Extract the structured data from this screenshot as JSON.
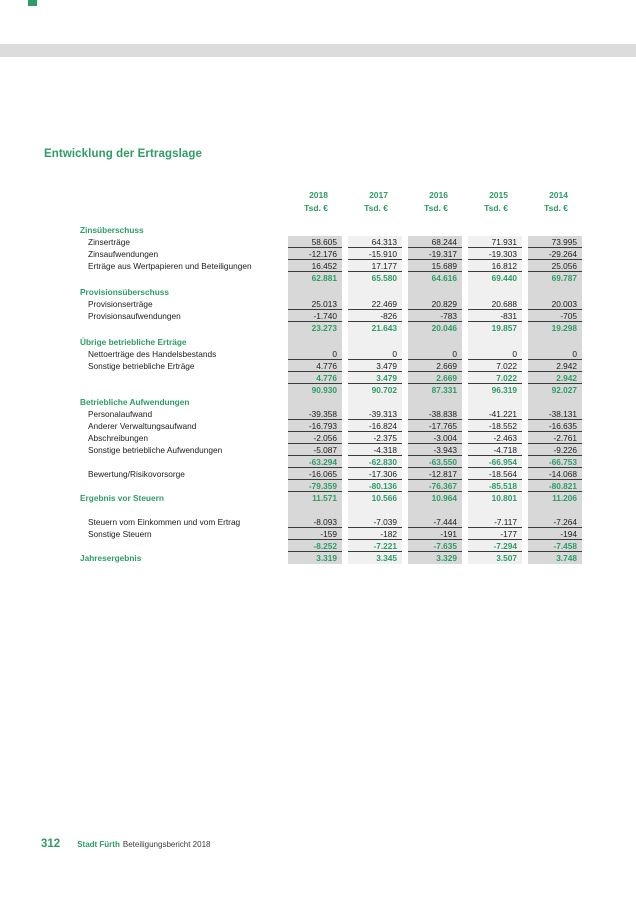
{
  "page": {
    "title": "Entwicklung der Ertragslage",
    "footer": {
      "page_number": "312",
      "brand": "Stadt Fürth",
      "report": "Beteiligungsbericht 2018"
    }
  },
  "colors": {
    "accent_green": "#2e9c66",
    "band_dark": "#d8d8d8",
    "band_light": "#f0f0f0",
    "top_band_gray": "#dcdcdc"
  },
  "table": {
    "years": [
      "2018",
      "2017",
      "2016",
      "2015",
      "2014"
    ],
    "unit": "Tsd. €",
    "rows": [
      {
        "type": "section",
        "label": "Zinsüberschuss",
        "band": false
      },
      {
        "type": "data",
        "label": "Zinserträge",
        "values": [
          "58.605",
          "64.313",
          "68.244",
          "71.931",
          "73.995"
        ],
        "underline": true
      },
      {
        "type": "data",
        "label": "Zinsaufwendungen",
        "values": [
          "-12.176",
          "-15.910",
          "-19.317",
          "-19.303",
          "-29.264"
        ],
        "underline": true
      },
      {
        "type": "data",
        "label": "Erträge aus Wertpapieren und Beteiligungen",
        "values": [
          "16.452",
          "17.177",
          "15.689",
          "16.812",
          "25.056"
        ],
        "underline": true
      },
      {
        "type": "sum",
        "label": "",
        "values": [
          "62.881",
          "65.580",
          "64.616",
          "69.440",
          "69.787"
        ],
        "underline": false
      },
      {
        "type": "spacer_small"
      },
      {
        "type": "section",
        "label": "Provisionsüberschuss"
      },
      {
        "type": "data",
        "label": "Provisionserträge",
        "values": [
          "25.013",
          "22.469",
          "20.829",
          "20.688",
          "20.003"
        ],
        "underline": true
      },
      {
        "type": "data",
        "label": "Provisionsaufwendungen",
        "values": [
          "-1.740",
          "-826",
          "-783",
          "-831",
          "-705"
        ],
        "underline": true
      },
      {
        "type": "sum",
        "label": "",
        "values": [
          "23.273",
          "21.643",
          "20.046",
          "19.857",
          "19.298"
        ],
        "underline": false
      },
      {
        "type": "spacer_small"
      },
      {
        "type": "section",
        "label": "Übrige betriebliche Erträge"
      },
      {
        "type": "data",
        "label": "Nettoerträge des Handelsbestands",
        "values": [
          "0",
          "0",
          "0",
          "0",
          "0"
        ],
        "underline": true
      },
      {
        "type": "data",
        "label": "Sonstige betriebliche Erträge",
        "values": [
          "4.776",
          "3.479",
          "2.669",
          "7.022",
          "2.942"
        ],
        "underline": true
      },
      {
        "type": "sum",
        "label": "",
        "values": [
          "4.776",
          "3.479",
          "2.669",
          "7.022",
          "2.942"
        ],
        "underline": true
      },
      {
        "type": "sum",
        "label": "",
        "values": [
          "90.930",
          "90.702",
          "87.331",
          "96.319",
          "92.027"
        ],
        "underline": false
      },
      {
        "type": "section",
        "label": "Betriebliche Aufwendungen"
      },
      {
        "type": "data",
        "label": "Personalaufwand",
        "values": [
          "-39.358",
          "-39.313",
          "-38.838",
          "-41.221",
          "-38.131"
        ],
        "underline": true
      },
      {
        "type": "data",
        "label": "Anderer Verwaltungsaufwand",
        "values": [
          "-16.793",
          "-16.824",
          "-17.765",
          "-18.552",
          "-16.635"
        ],
        "underline": true
      },
      {
        "type": "data",
        "label": "Abschreibungen",
        "values": [
          "-2.056",
          "-2.375",
          "-3.004",
          "-2.463",
          "-2.761"
        ],
        "underline": true
      },
      {
        "type": "data",
        "label": "Sonstige betriebliche Aufwendungen",
        "values": [
          "-5.087",
          "-4.318",
          "-3.943",
          "-4.718",
          "-9.226"
        ],
        "underline": true
      },
      {
        "type": "sum",
        "label": "",
        "values": [
          "-63.294",
          "-62.830",
          "-63.550",
          "-66.954",
          "-66.753"
        ],
        "underline": true
      },
      {
        "type": "data",
        "label": "Bewertung/Risikovorsorge",
        "values": [
          "-16.065",
          "-17.306",
          "-12.817",
          "-18.564",
          "-14.068"
        ],
        "underline": true
      },
      {
        "type": "sum",
        "label": "",
        "values": [
          "-79.359",
          "-80.136",
          "-76.367",
          "-85.518",
          "-80.821"
        ],
        "underline": true
      },
      {
        "type": "result",
        "label": "Ergebnis vor Steuern",
        "values": [
          "11.571",
          "10.566",
          "10.964",
          "10.801",
          "11.206"
        ],
        "underline": false
      },
      {
        "type": "spacer"
      },
      {
        "type": "data",
        "label": "Steuern vom Einkommen und vom Ertrag",
        "values": [
          "-8.093",
          "-7.039",
          "-7.444",
          "-7.117",
          "-7.264"
        ],
        "underline": true
      },
      {
        "type": "data",
        "label": "Sonstige Steuern",
        "values": [
          "-159",
          "-182",
          "-191",
          "-177",
          "-194"
        ],
        "underline": true
      },
      {
        "type": "sum",
        "label": "",
        "values": [
          "-8.252",
          "-7.221",
          "-7.635",
          "-7.294",
          "-7.458"
        ],
        "underline": true
      },
      {
        "type": "result",
        "label": "Jahresergebnis",
        "values": [
          "3.319",
          "3.345",
          "3.329",
          "3.507",
          "3.748"
        ],
        "underline": false
      }
    ]
  }
}
